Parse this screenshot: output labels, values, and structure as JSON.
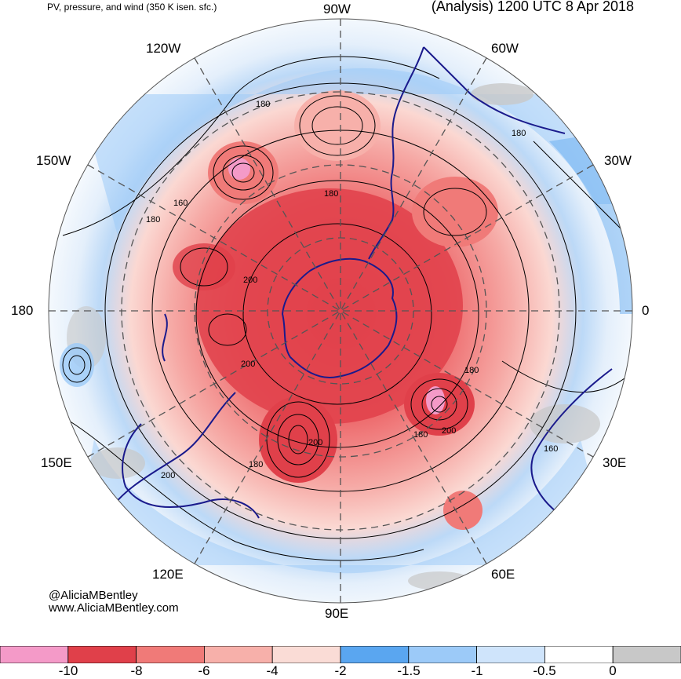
{
  "header": {
    "left": "PV, pressure, and wind (350 K isen. sfc.)",
    "right": "(Analysis) 1200 UTC 8 Apr 2018"
  },
  "longitudes": {
    "w90": "90W",
    "w120": "120W",
    "w60": "60W",
    "w150": "150W",
    "w30": "30W",
    "l180": "180",
    "l0": "0",
    "e150": "150E",
    "e30": "30E",
    "e120": "120E",
    "e60": "60E",
    "e90": "90E"
  },
  "contour_labels": [
    "180",
    "180",
    "160",
    "180",
    "200",
    "200",
    "200",
    "180",
    "200",
    "180",
    "180",
    "200",
    "180",
    "160"
  ],
  "credit": {
    "handle": "@AliciaMBentley",
    "site": "www.AliciaMBentley.com"
  },
  "colorbar": {
    "labels": [
      "-10",
      "-8",
      "-6",
      "-4",
      "-2",
      "-1.5",
      "-1",
      "-0.5",
      "0"
    ],
    "colors": [
      "#f49ac8",
      "#e0404a",
      "#f07a78",
      "#f7b0aa",
      "#fadcd6",
      "#5aa6f0",
      "#9ccaf8",
      "#cfe4fb",
      "#ffffff",
      "#c8c8c8"
    ]
  }
}
